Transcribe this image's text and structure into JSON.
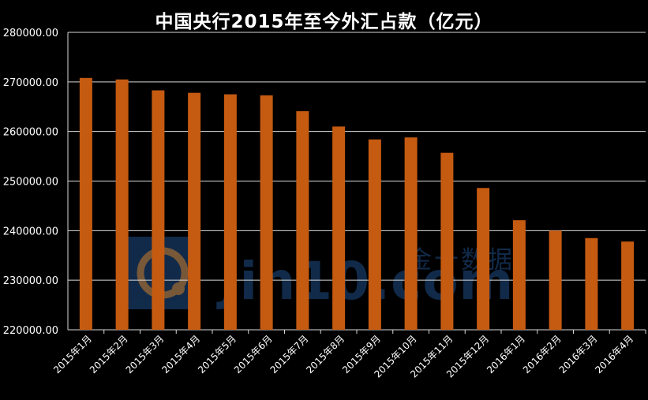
{
  "chart_data": {
    "type": "bar",
    "title": "中国央行2015年至今外汇占款（亿元）",
    "categories": [
      "2015年1月",
      "2015年2月",
      "2015年3月",
      "2015年4月",
      "2015年5月",
      "2015年6月",
      "2015年7月",
      "2015年8月",
      "2015年9月",
      "2015年10月",
      "2015年11月",
      "2015年12月",
      "2016年1月",
      "2016年2月",
      "2016年3月",
      "2016年4月"
    ],
    "values": [
      270800,
      270500,
      268300,
      267800,
      267500,
      267300,
      264100,
      261000,
      258400,
      258800,
      255700,
      248600,
      242100,
      240000,
      238500,
      237800
    ],
    "ylim": [
      220000,
      280000
    ],
    "yticks": [
      220000,
      230000,
      240000,
      250000,
      260000,
      270000,
      280000
    ],
    "ytick_labels": [
      "220000.00",
      "230000.00",
      "240000.00",
      "250000.00",
      "260000.00",
      "270000.00",
      "280000.00"
    ],
    "grid": true,
    "bar_color": "#c55a11",
    "background": "#000000"
  },
  "watermark": {
    "text": "Jin10.com",
    "cn_text": "金十数据",
    "color": "#1f4e86"
  }
}
